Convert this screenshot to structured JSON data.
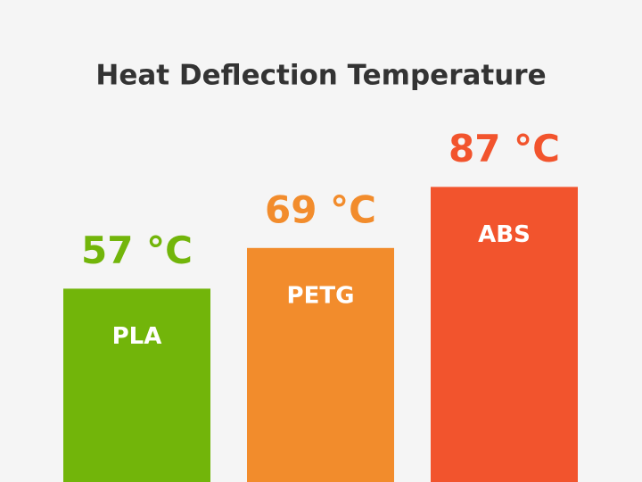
{
  "chart_data": {
    "type": "bar",
    "title": "Heat Deflection Temperature",
    "categories": [
      "PLA",
      "PETG",
      "ABS"
    ],
    "values": [
      57,
      69,
      87
    ],
    "value_labels": [
      "57 °C",
      "69 °C",
      "87 °C"
    ],
    "colors": [
      "#72b50a",
      "#f28c2c",
      "#f2542d"
    ]
  }
}
